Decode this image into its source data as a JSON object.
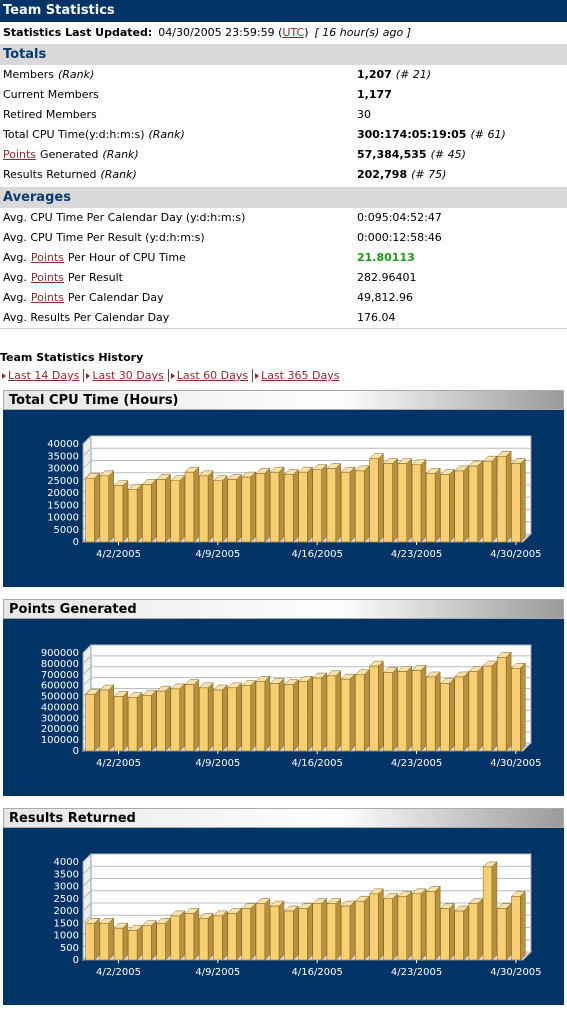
{
  "header": {
    "title": "Team Statistics"
  },
  "updated": {
    "label": "Statistics Last Updated:",
    "datetime": "04/30/2005 23:59:59",
    "tz_open": "(",
    "tz": "UTC",
    "tz_close": ")",
    "ago": "[ 16 hour(s) ago ]"
  },
  "totals": {
    "title": "Totals",
    "rows": [
      {
        "label": "Members",
        "note": "(Rank)",
        "value": "1,207",
        "rank": "(# 21)",
        "bold": true
      },
      {
        "label": "Current Members",
        "value": "1,177",
        "bold": true
      },
      {
        "label": "Retired Members",
        "value": "30",
        "bold": false
      },
      {
        "label": "Total CPU Time(y:d:h:m:s)",
        "note": "(Rank)",
        "value": "300:174:05:19:05",
        "rank": "(# 61)",
        "bold": true
      },
      {
        "link": "Points",
        "label": "Generated",
        "note": "(Rank)",
        "value": "57,384,535",
        "rank": "(# 45)",
        "bold": true
      },
      {
        "label": "Results Returned",
        "note": "(Rank)",
        "value": "202,798",
        "rank": "(# 75)",
        "bold": true
      }
    ]
  },
  "averages": {
    "title": "Averages",
    "rows": [
      {
        "label": "Avg. CPU Time Per Calendar Day (y:d:h:m:s)",
        "value": "0:095:04:52:47"
      },
      {
        "label": "Avg. CPU Time Per Result (y:d:h:m:s)",
        "value": "0:000:12:58:46"
      },
      {
        "label": "Avg.",
        "link": "Points",
        "post": "Per Hour of CPU Time",
        "value": "21.80113",
        "bold": true,
        "color": "#1a9a1a"
      },
      {
        "label": "Avg.",
        "link": "Points",
        "post": "Per Result",
        "value": "282.96401"
      },
      {
        "label": "Avg.",
        "link": "Points",
        "post": "Per Calendar Day",
        "value": "49,812.96"
      },
      {
        "label": "Avg. Results Per Calendar Day",
        "value": "176.04"
      }
    ]
  },
  "history": {
    "title": "Team Statistics History",
    "links": [
      "Last 14 Days",
      "Last 30 Days",
      "Last 60 Days",
      "Last 365 Days"
    ]
  },
  "chart_data": [
    {
      "type": "bar",
      "title": "Total CPU Time (Hours)",
      "color": "#f8cf73",
      "categories": [
        null,
        null,
        "4/2/2005",
        null,
        null,
        null,
        null,
        null,
        null,
        "4/9/2005",
        null,
        null,
        null,
        null,
        null,
        null,
        "4/16/2005",
        null,
        null,
        null,
        null,
        null,
        null,
        "4/23/2005",
        null,
        null,
        null,
        null,
        null,
        null,
        "4/30/2005"
      ],
      "values": [
        26000,
        27000,
        23000,
        21500,
        23500,
        25500,
        25000,
        28500,
        27000,
        25000,
        25500,
        26500,
        28000,
        28500,
        27500,
        28500,
        29500,
        30000,
        28500,
        29000,
        34000,
        32000,
        32000,
        31500,
        28000,
        27500,
        29000,
        31000,
        33000,
        35000,
        32000
      ],
      "ylim": [
        0,
        40000
      ],
      "yticks": [
        0,
        5000,
        10000,
        15000,
        20000,
        25000,
        30000,
        35000,
        40000
      ],
      "grid": true
    },
    {
      "type": "bar",
      "title": "Points Generated",
      "color": "#f8cf73",
      "categories": [
        null,
        null,
        "4/2/2005",
        null,
        null,
        null,
        null,
        null,
        null,
        "4/9/2005",
        null,
        null,
        null,
        null,
        null,
        null,
        "4/16/2005",
        null,
        null,
        null,
        null,
        null,
        null,
        "4/23/2005",
        null,
        null,
        null,
        null,
        null,
        null,
        "4/30/2005"
      ],
      "values": [
        520000,
        560000,
        500000,
        490000,
        510000,
        550000,
        570000,
        610000,
        580000,
        560000,
        580000,
        600000,
        640000,
        620000,
        610000,
        640000,
        670000,
        690000,
        660000,
        700000,
        780000,
        720000,
        730000,
        740000,
        680000,
        620000,
        680000,
        730000,
        780000,
        860000,
        760000
      ],
      "ylim": [
        0,
        900000
      ],
      "yticks": [
        0,
        100000,
        200000,
        300000,
        400000,
        500000,
        600000,
        700000,
        800000,
        900000
      ],
      "grid": true
    },
    {
      "type": "bar",
      "title": "Results Returned",
      "color": "#f8cf73",
      "categories": [
        null,
        null,
        "4/2/2005",
        null,
        null,
        null,
        null,
        null,
        null,
        "4/9/2005",
        null,
        null,
        null,
        null,
        null,
        null,
        "4/16/2005",
        null,
        null,
        null,
        null,
        null,
        null,
        "4/23/2005",
        null,
        null,
        null,
        null,
        null,
        null,
        "4/30/2005"
      ],
      "values": [
        1500,
        1500,
        1300,
        1200,
        1400,
        1500,
        1800,
        1900,
        1700,
        1800,
        1900,
        2100,
        2300,
        2200,
        2000,
        2100,
        2300,
        2300,
        2200,
        2400,
        2700,
        2500,
        2600,
        2700,
        2800,
        2100,
        2000,
        2300,
        3800,
        2100,
        2600
      ],
      "ylim": [
        0,
        4000
      ],
      "yticks": [
        0,
        500,
        1000,
        1500,
        2000,
        2500,
        3000,
        3500,
        4000
      ],
      "grid": true
    }
  ]
}
